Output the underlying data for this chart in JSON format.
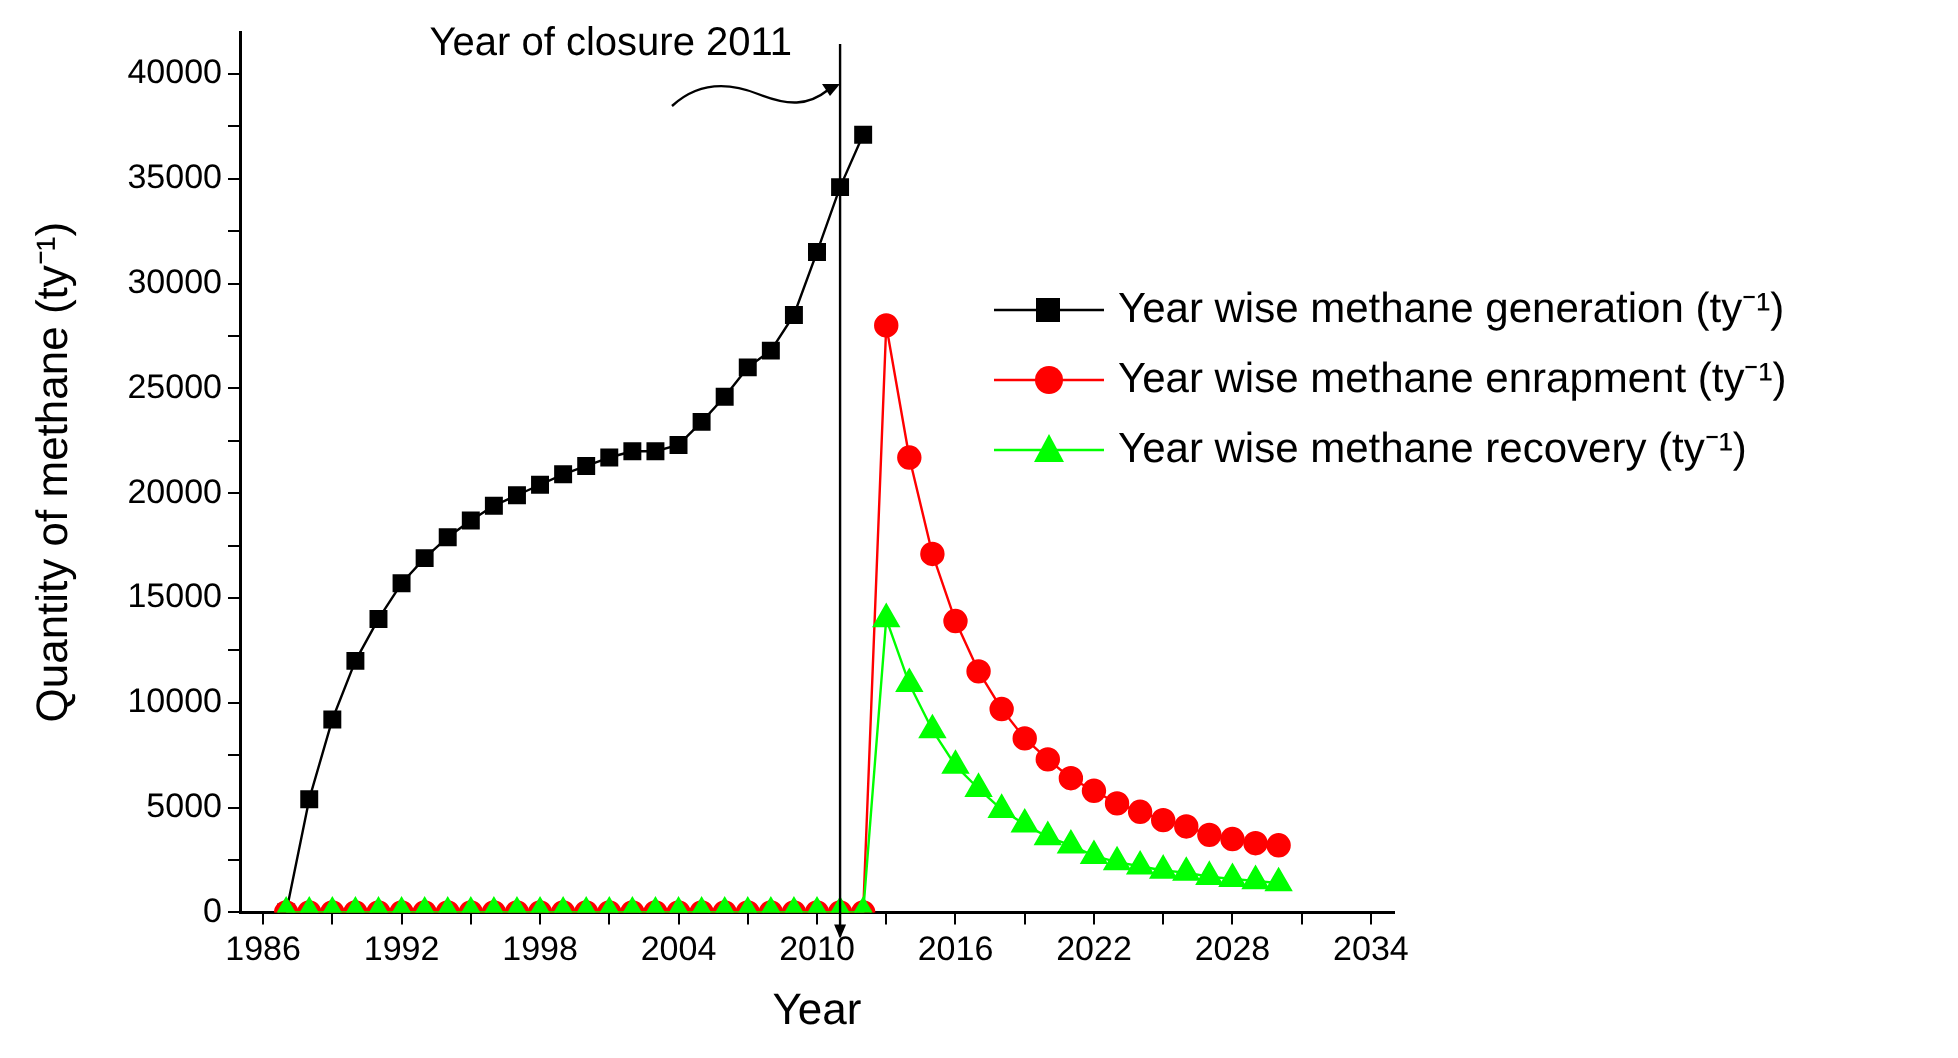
{
  "chart_data": {
    "type": "line",
    "xlabel": "Year",
    "ylabel": "Quantity of methane (ty⁻¹)",
    "xlim": [
      1985,
      2035
    ],
    "ylim": [
      0,
      42000
    ],
    "xticks": [
      1986,
      {
        "value": 1989,
        "label": null
      },
      1992,
      {
        "value": 1995,
        "label": null
      },
      1998,
      {
        "value": 2001,
        "label": null
      },
      2004,
      {
        "value": 2007,
        "label": null
      },
      2010,
      {
        "value": 2013,
        "label": null
      },
      2016,
      {
        "value": 2019,
        "label": null
      },
      2022,
      {
        "value": 2025,
        "label": null
      },
      2028,
      {
        "value": 2031,
        "label": null
      },
      2034
    ],
    "yticks": [
      0,
      {
        "value": 2500,
        "label": null
      },
      5000,
      {
        "value": 7500,
        "label": null
      },
      10000,
      {
        "value": 12500,
        "label": null
      },
      15000,
      {
        "value": 17500,
        "label": null
      },
      20000,
      {
        "value": 22500,
        "label": null
      },
      25000,
      {
        "value": 27500,
        "label": null
      },
      30000,
      {
        "value": 32500,
        "label": null
      },
      35000,
      {
        "value": 37500,
        "label": null
      },
      40000
    ],
    "x": [
      1987,
      1988,
      1989,
      1990,
      1991,
      1992,
      1993,
      1994,
      1995,
      1996,
      1997,
      1998,
      1999,
      2000,
      2001,
      2002,
      2003,
      2004,
      2005,
      2006,
      2007,
      2008,
      2009,
      2010,
      2011,
      2012,
      2013,
      2014,
      2015,
      2016,
      2017,
      2018,
      2019,
      2020,
      2021,
      2022,
      2023,
      2024,
      2025,
      2026,
      2027,
      2028,
      2029,
      2030
    ],
    "series": [
      {
        "name": "Year wise methane generation (ty⁻¹)",
        "color": "#000000",
        "marker": "square",
        "x": [
          1987,
          1988,
          1989,
          1990,
          1991,
          1992,
          1993,
          1994,
          1995,
          1996,
          1997,
          1998,
          1999,
          2000,
          2001,
          2002,
          2003,
          2004,
          2005,
          2006,
          2007,
          2008,
          2009,
          2010,
          2011,
          2012
        ],
        "values": [
          0,
          5400,
          9200,
          12000,
          14000,
          15700,
          16900,
          17900,
          18700,
          19400,
          19900,
          20400,
          20900,
          21300,
          21700,
          22000,
          22000,
          22300,
          23400,
          24600,
          26000,
          26800,
          28500,
          31500,
          34600,
          37100
        ]
      },
      {
        "name": "Year wise methane enrapment (ty⁻¹)",
        "color": "#ff0000",
        "marker": "circle",
        "values": [
          0,
          0,
          0,
          0,
          0,
          0,
          0,
          0,
          0,
          0,
          0,
          0,
          0,
          0,
          0,
          0,
          0,
          0,
          0,
          0,
          0,
          0,
          0,
          0,
          0,
          0,
          28000,
          21700,
          17100,
          13900,
          11500,
          9700,
          8300,
          7300,
          6400,
          5800,
          5200,
          4800,
          4400,
          4100,
          3700,
          3500,
          3300,
          3200
        ]
      },
      {
        "name": "Year wise methane recovery (ty⁻¹)",
        "color": "#00ff00",
        "marker": "triangle",
        "values": [
          0,
          0,
          0,
          0,
          0,
          0,
          0,
          0,
          0,
          0,
          0,
          0,
          0,
          0,
          0,
          0,
          0,
          0,
          0,
          0,
          0,
          0,
          0,
          0,
          0,
          0,
          14000,
          10900,
          8700,
          7000,
          5900,
          4900,
          4200,
          3600,
          3200,
          2700,
          2400,
          2200,
          2000,
          1900,
          1700,
          1600,
          1500,
          1400
        ]
      }
    ],
    "ref_lines": [
      {
        "axis": "x",
        "value": 2011,
        "label": "Year of closure 2011",
        "color": "#000000"
      }
    ],
    "legend": "right",
    "grid": false
  }
}
